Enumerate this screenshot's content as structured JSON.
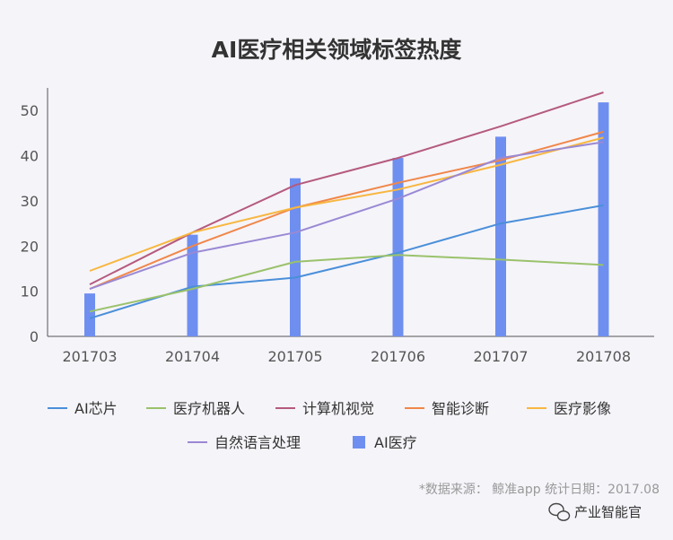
{
  "chart_data": {
    "type": "bar",
    "title": "AI医疗相关领域标签热度",
    "categories": [
      "201703",
      "201704",
      "201705",
      "201706",
      "201707",
      "201708"
    ],
    "ylim": [
      0,
      55
    ],
    "yticks": [
      0,
      10,
      20,
      30,
      40,
      50
    ],
    "grid": false,
    "legend_position": "bottom",
    "bar_series": {
      "name": "AI医疗",
      "color": "#6e8ff0",
      "values": [
        9.5,
        22.5,
        35,
        39.5,
        44.2,
        51.8
      ]
    },
    "line_series": [
      {
        "name": "AI芯片",
        "color": "#4a8fd9",
        "values": [
          4,
          11,
          13,
          18.5,
          25,
          29
        ]
      },
      {
        "name": "医疗机器人",
        "color": "#9ac26b",
        "values": [
          5.5,
          10.5,
          16.5,
          18,
          17,
          15.8
        ]
      },
      {
        "name": "计算机视觉",
        "color": "#b55a7e",
        "values": [
          11.5,
          23,
          33.5,
          39.5,
          46.5,
          54
        ]
      },
      {
        "name": "智能诊断",
        "color": "#f0874a",
        "values": [
          10.5,
          20,
          28.5,
          34,
          39,
          45.3
        ]
      },
      {
        "name": "医疗影像",
        "color": "#f7b740",
        "values": [
          14.5,
          23,
          28.5,
          32.5,
          38,
          44
        ]
      },
      {
        "name": "自然语言处理",
        "color": "#9a89d4",
        "values": [
          10.5,
          18.5,
          23,
          30.5,
          39.5,
          43
        ]
      }
    ]
  },
  "source_note": "*数据来源： 鲸准app 统计日期：2017.08",
  "watermark": {
    "text": "产业智能官",
    "icon": "wechat-icon"
  }
}
